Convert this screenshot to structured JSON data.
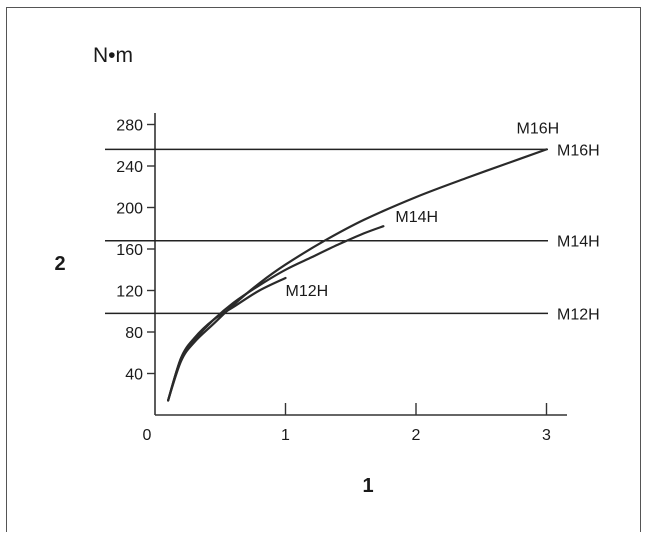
{
  "chart_data": {
    "type": "line",
    "unit_label": "N•m",
    "xlabel": "1",
    "ylabel": "2",
    "xlim": [
      0,
      3.15
    ],
    "ylim": [
      0,
      290
    ],
    "x_ticks": [
      "0",
      "1",
      "2",
      "3"
    ],
    "y_ticks": [
      "40",
      "80",
      "120",
      "160",
      "200",
      "240",
      "280"
    ],
    "grid": false,
    "curves": [
      {
        "name": "M12H",
        "x": [
          0.1,
          0.2,
          0.3,
          0.45,
          0.6,
          0.8,
          1.0
        ],
        "y": [
          14,
          55,
          74,
          92,
          104,
          120,
          132
        ]
      },
      {
        "name": "M14H",
        "x": [
          0.1,
          0.2,
          0.3,
          0.45,
          0.6,
          0.8,
          1.0,
          1.2,
          1.4,
          1.6,
          1.75
        ],
        "y": [
          14,
          55,
          72,
          92,
          108,
          125,
          140,
          152,
          164,
          175,
          182
        ]
      },
      {
        "name": "M16H",
        "x": [
          0.1,
          0.2,
          0.3,
          0.45,
          0.6,
          0.8,
          1.0,
          1.3,
          1.6,
          2.0,
          2.4,
          2.8,
          3.0
        ],
        "y": [
          14,
          52,
          70,
          88,
          106,
          127,
          145,
          168,
          188,
          210,
          229,
          247,
          256
        ]
      }
    ],
    "limits": [
      {
        "name": "M12H",
        "y": 98
      },
      {
        "name": "M14H",
        "y": 168
      },
      {
        "name": "M16H",
        "y": 256
      }
    ]
  }
}
